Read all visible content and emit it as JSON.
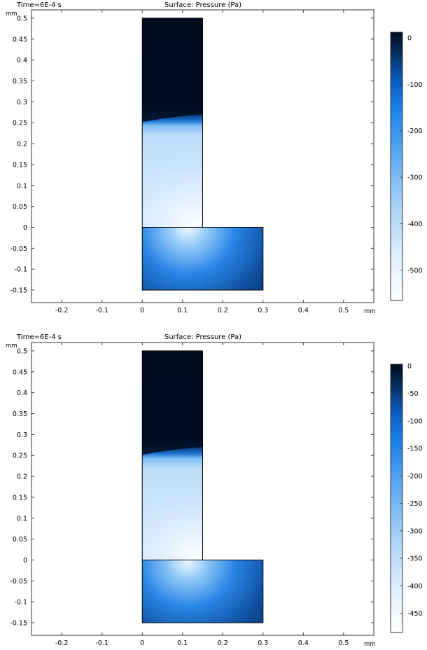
{
  "chart_data": [
    {
      "type": "heatmap",
      "time_label": "Time=6E-4 s",
      "title": "Surface: Pressure (Pa)",
      "x_unit": "mm",
      "y_unit": "mm",
      "xlim": [
        -0.275,
        0.575
      ],
      "ylim": [
        -0.18,
        0.52
      ],
      "x_ticks": [
        {
          "value": -0.2,
          "label": "-0.2"
        },
        {
          "value": -0.1,
          "label": "-0.1"
        },
        {
          "value": 0,
          "label": "0"
        },
        {
          "value": 0.1,
          "label": "0.1"
        },
        {
          "value": 0.2,
          "label": "0.2"
        },
        {
          "value": 0.3,
          "label": "0.3"
        },
        {
          "value": 0.4,
          "label": "0.4"
        },
        {
          "value": 0.5,
          "label": "0.5"
        }
      ],
      "y_ticks": [
        {
          "value": 0.5,
          "label": "0.5"
        },
        {
          "value": 0.45,
          "label": "0.45"
        },
        {
          "value": 0.4,
          "label": "0.4"
        },
        {
          "value": 0.35,
          "label": "0.35"
        },
        {
          "value": 0.3,
          "label": "0.3"
        },
        {
          "value": 0.25,
          "label": "0.25"
        },
        {
          "value": 0.2,
          "label": "0.2"
        },
        {
          "value": 0.15,
          "label": "0.15"
        },
        {
          "value": 0.1,
          "label": "0.1"
        },
        {
          "value": 0.05,
          "label": "0.05"
        },
        {
          "value": 0,
          "label": "0"
        },
        {
          "value": -0.05,
          "label": "-0.05"
        },
        {
          "value": -0.1,
          "label": "-0.1"
        },
        {
          "value": -0.15,
          "label": "-0.15"
        }
      ],
      "domain": {
        "upper_rect": {
          "x": [
            0,
            0.15
          ],
          "y": [
            0,
            0.5
          ]
        },
        "lower_rect": {
          "x": [
            0,
            0.3
          ],
          "y": [
            -0.15,
            0
          ]
        }
      },
      "colorbar": {
        "range": [
          -565,
          12
        ],
        "ticks": [
          {
            "value": 0,
            "label": "0"
          },
          {
            "value": -100,
            "label": "-100"
          },
          {
            "value": -200,
            "label": "-200"
          },
          {
            "value": -300,
            "label": "-300"
          },
          {
            "value": -400,
            "label": "-400"
          },
          {
            "value": -500,
            "label": "-500"
          }
        ]
      },
      "colors": {
        "high": "#000c1f",
        "mid": "#1a7fe8",
        "low": "#ffffff"
      }
    },
    {
      "type": "heatmap",
      "time_label": "Time=6E-4 s",
      "title": "Surface: Pressure (Pa)",
      "x_unit": "mm",
      "y_unit": "mm",
      "xlim": [
        -0.275,
        0.575
      ],
      "ylim": [
        -0.18,
        0.52
      ],
      "x_ticks": [
        {
          "value": -0.2,
          "label": "-0.2"
        },
        {
          "value": -0.1,
          "label": "-0.1"
        },
        {
          "value": 0,
          "label": "0"
        },
        {
          "value": 0.1,
          "label": "0.1"
        },
        {
          "value": 0.2,
          "label": "0.2"
        },
        {
          "value": 0.3,
          "label": "0.3"
        },
        {
          "value": 0.4,
          "label": "0.4"
        },
        {
          "value": 0.5,
          "label": "0.5"
        }
      ],
      "y_ticks": [
        {
          "value": 0.5,
          "label": "0.5"
        },
        {
          "value": 0.45,
          "label": "0.45"
        },
        {
          "value": 0.4,
          "label": "0.4"
        },
        {
          "value": 0.35,
          "label": "0.35"
        },
        {
          "value": 0.3,
          "label": "0.3"
        },
        {
          "value": 0.25,
          "label": "0.25"
        },
        {
          "value": 0.2,
          "label": "0.2"
        },
        {
          "value": 0.15,
          "label": "0.15"
        },
        {
          "value": 0.1,
          "label": "0.1"
        },
        {
          "value": 0.05,
          "label": "0.05"
        },
        {
          "value": 0,
          "label": "0"
        },
        {
          "value": -0.05,
          "label": "-0.05"
        },
        {
          "value": -0.1,
          "label": "-0.1"
        },
        {
          "value": -0.15,
          "label": "-0.15"
        }
      ],
      "domain": {
        "upper_rect": {
          "x": [
            0,
            0.15
          ],
          "y": [
            0,
            0.5
          ]
        },
        "lower_rect": {
          "x": [
            0,
            0.3
          ],
          "y": [
            -0.15,
            0
          ]
        }
      },
      "colorbar": {
        "range": [
          -485,
          3
        ],
        "ticks": [
          {
            "value": 0,
            "label": "0"
          },
          {
            "value": -50,
            "label": "-50"
          },
          {
            "value": -100,
            "label": "-100"
          },
          {
            "value": -150,
            "label": "-150"
          },
          {
            "value": -200,
            "label": "-200"
          },
          {
            "value": -250,
            "label": "-250"
          },
          {
            "value": -300,
            "label": "-300"
          },
          {
            "value": -350,
            "label": "-350"
          },
          {
            "value": -400,
            "label": "-400"
          },
          {
            "value": -450,
            "label": "-450"
          }
        ]
      },
      "colors": {
        "high": "#000c1f",
        "mid": "#1a7fe8",
        "low": "#ffffff"
      }
    }
  ]
}
